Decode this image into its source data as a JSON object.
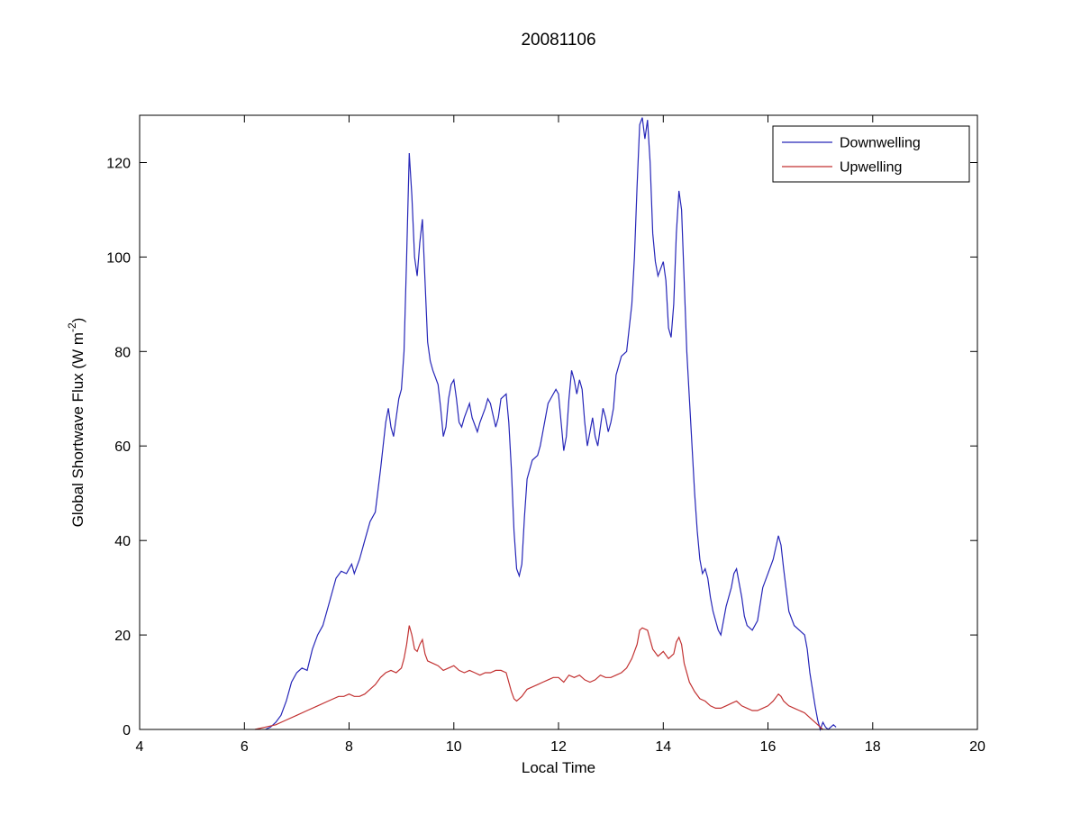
{
  "chart_data": {
    "type": "line",
    "title": "20081106",
    "xlabel": "Local Time",
    "ylabel": "Global Shortwave Flux (W m-2)",
    "ylabel_parts": {
      "main": "Global Shortwave Flux (W m",
      "sup": "-2",
      "end": ")"
    },
    "xlim": [
      4,
      20
    ],
    "ylim": [
      0,
      130
    ],
    "xticks": [
      4,
      6,
      8,
      10,
      12,
      14,
      16,
      18,
      20
    ],
    "yticks": [
      0,
      20,
      40,
      60,
      80,
      100,
      120
    ],
    "grid": false,
    "legend_position": "top-right",
    "series": [
      {
        "name": "Downwelling",
        "color": "#2626b8",
        "points": [
          [
            6.4,
            0
          ],
          [
            6.5,
            0.5
          ],
          [
            6.6,
            1.5
          ],
          [
            6.7,
            3
          ],
          [
            6.8,
            6
          ],
          [
            6.9,
            10
          ],
          [
            7.0,
            12
          ],
          [
            7.1,
            13
          ],
          [
            7.2,
            12.5
          ],
          [
            7.3,
            17
          ],
          [
            7.4,
            20
          ],
          [
            7.5,
            22
          ],
          [
            7.6,
            26
          ],
          [
            7.7,
            30
          ],
          [
            7.75,
            32
          ],
          [
            7.85,
            33.5
          ],
          [
            7.95,
            33
          ],
          [
            8.0,
            34
          ],
          [
            8.05,
            35
          ],
          [
            8.1,
            33
          ],
          [
            8.2,
            36
          ],
          [
            8.3,
            40
          ],
          [
            8.4,
            44
          ],
          [
            8.5,
            46
          ],
          [
            8.6,
            55
          ],
          [
            8.65,
            60
          ],
          [
            8.7,
            65
          ],
          [
            8.75,
            68
          ],
          [
            8.8,
            64
          ],
          [
            8.85,
            62
          ],
          [
            8.9,
            66
          ],
          [
            8.95,
            70
          ],
          [
            9.0,
            72
          ],
          [
            9.05,
            80
          ],
          [
            9.1,
            100
          ],
          [
            9.15,
            122
          ],
          [
            9.2,
            113
          ],
          [
            9.25,
            100
          ],
          [
            9.3,
            96
          ],
          [
            9.35,
            103
          ],
          [
            9.4,
            108
          ],
          [
            9.45,
            95
          ],
          [
            9.5,
            82
          ],
          [
            9.55,
            78
          ],
          [
            9.6,
            76
          ],
          [
            9.7,
            73
          ],
          [
            9.75,
            68
          ],
          [
            9.8,
            62
          ],
          [
            9.85,
            64
          ],
          [
            9.9,
            70
          ],
          [
            9.95,
            73
          ],
          [
            10.0,
            74
          ],
          [
            10.05,
            70
          ],
          [
            10.1,
            65
          ],
          [
            10.15,
            64
          ],
          [
            10.2,
            66
          ],
          [
            10.3,
            69
          ],
          [
            10.35,
            66
          ],
          [
            10.45,
            63
          ],
          [
            10.5,
            65
          ],
          [
            10.6,
            68
          ],
          [
            10.65,
            70
          ],
          [
            10.7,
            69
          ],
          [
            10.8,
            64
          ],
          [
            10.85,
            66
          ],
          [
            10.9,
            70
          ],
          [
            11.0,
            71
          ],
          [
            11.05,
            65
          ],
          [
            11.1,
            55
          ],
          [
            11.15,
            42
          ],
          [
            11.2,
            34
          ],
          [
            11.25,
            32.5
          ],
          [
            11.3,
            35
          ],
          [
            11.35,
            45
          ],
          [
            11.4,
            53
          ],
          [
            11.5,
            57
          ],
          [
            11.6,
            58
          ],
          [
            11.65,
            60
          ],
          [
            11.7,
            63
          ],
          [
            11.8,
            69
          ],
          [
            11.9,
            71
          ],
          [
            11.95,
            72
          ],
          [
            12.0,
            71
          ],
          [
            12.05,
            65
          ],
          [
            12.1,
            59
          ],
          [
            12.15,
            62
          ],
          [
            12.2,
            70
          ],
          [
            12.25,
            76
          ],
          [
            12.3,
            74
          ],
          [
            12.35,
            71
          ],
          [
            12.4,
            74
          ],
          [
            12.45,
            72
          ],
          [
            12.5,
            65
          ],
          [
            12.55,
            60
          ],
          [
            12.6,
            63
          ],
          [
            12.65,
            66
          ],
          [
            12.7,
            62
          ],
          [
            12.75,
            60
          ],
          [
            12.8,
            64
          ],
          [
            12.85,
            68
          ],
          [
            12.9,
            66
          ],
          [
            12.95,
            63
          ],
          [
            13.0,
            65
          ],
          [
            13.05,
            68
          ],
          [
            13.1,
            75
          ],
          [
            13.2,
            79
          ],
          [
            13.3,
            80
          ],
          [
            13.35,
            85
          ],
          [
            13.4,
            90
          ],
          [
            13.45,
            100
          ],
          [
            13.5,
            115
          ],
          [
            13.55,
            128
          ],
          [
            13.6,
            129.5
          ],
          [
            13.65,
            125
          ],
          [
            13.7,
            129
          ],
          [
            13.75,
            120
          ],
          [
            13.8,
            105
          ],
          [
            13.85,
            99
          ],
          [
            13.9,
            96
          ],
          [
            14.0,
            99
          ],
          [
            14.05,
            95
          ],
          [
            14.1,
            85
          ],
          [
            14.15,
            83
          ],
          [
            14.2,
            90
          ],
          [
            14.25,
            105
          ],
          [
            14.3,
            114
          ],
          [
            14.35,
            110
          ],
          [
            14.4,
            95
          ],
          [
            14.45,
            80
          ],
          [
            14.5,
            70
          ],
          [
            14.55,
            60
          ],
          [
            14.6,
            50
          ],
          [
            14.65,
            42
          ],
          [
            14.7,
            36
          ],
          [
            14.75,
            33
          ],
          [
            14.8,
            34
          ],
          [
            14.85,
            32
          ],
          [
            14.9,
            28
          ],
          [
            14.95,
            25
          ],
          [
            15.0,
            23
          ],
          [
            15.05,
            21
          ],
          [
            15.1,
            20
          ],
          [
            15.2,
            26
          ],
          [
            15.3,
            30
          ],
          [
            15.35,
            33
          ],
          [
            15.4,
            34
          ],
          [
            15.45,
            31
          ],
          [
            15.5,
            28
          ],
          [
            15.55,
            24
          ],
          [
            15.6,
            22
          ],
          [
            15.7,
            21
          ],
          [
            15.8,
            23
          ],
          [
            15.9,
            30
          ],
          [
            16.0,
            33
          ],
          [
            16.1,
            36
          ],
          [
            16.2,
            41
          ],
          [
            16.25,
            39
          ],
          [
            16.3,
            34
          ],
          [
            16.4,
            25
          ],
          [
            16.5,
            22
          ],
          [
            16.6,
            21
          ],
          [
            16.7,
            20
          ],
          [
            16.75,
            17
          ],
          [
            16.8,
            12
          ],
          [
            16.9,
            5
          ],
          [
            16.95,
            2
          ],
          [
            17.0,
            0
          ],
          [
            17.05,
            1.5
          ],
          [
            17.1,
            0.5
          ],
          [
            17.15,
            0
          ],
          [
            17.25,
            1
          ],
          [
            17.3,
            0.5
          ]
        ]
      },
      {
        "name": "Upwelling",
        "color": "#c23232",
        "points": [
          [
            6.2,
            0
          ],
          [
            6.4,
            0.5
          ],
          [
            6.6,
            1
          ],
          [
            6.8,
            2
          ],
          [
            7.0,
            3
          ],
          [
            7.2,
            4
          ],
          [
            7.4,
            5
          ],
          [
            7.6,
            6
          ],
          [
            7.8,
            7
          ],
          [
            7.9,
            7
          ],
          [
            8.0,
            7.5
          ],
          [
            8.1,
            7
          ],
          [
            8.2,
            7
          ],
          [
            8.3,
            7.5
          ],
          [
            8.4,
            8.5
          ],
          [
            8.5,
            9.5
          ],
          [
            8.6,
            11
          ],
          [
            8.7,
            12
          ],
          [
            8.8,
            12.5
          ],
          [
            8.9,
            12
          ],
          [
            9.0,
            13
          ],
          [
            9.05,
            15
          ],
          [
            9.1,
            18
          ],
          [
            9.15,
            22
          ],
          [
            9.2,
            20
          ],
          [
            9.25,
            17
          ],
          [
            9.3,
            16.5
          ],
          [
            9.35,
            18
          ],
          [
            9.4,
            19
          ],
          [
            9.45,
            16
          ],
          [
            9.5,
            14.5
          ],
          [
            9.6,
            14
          ],
          [
            9.7,
            13.5
          ],
          [
            9.8,
            12.5
          ],
          [
            9.9,
            13
          ],
          [
            10.0,
            13.5
          ],
          [
            10.1,
            12.5
          ],
          [
            10.2,
            12
          ],
          [
            10.3,
            12.5
          ],
          [
            10.4,
            12
          ],
          [
            10.5,
            11.5
          ],
          [
            10.6,
            12
          ],
          [
            10.7,
            12
          ],
          [
            10.8,
            12.5
          ],
          [
            10.9,
            12.5
          ],
          [
            11.0,
            12
          ],
          [
            11.05,
            10
          ],
          [
            11.1,
            8
          ],
          [
            11.15,
            6.5
          ],
          [
            11.2,
            6
          ],
          [
            11.3,
            7
          ],
          [
            11.4,
            8.5
          ],
          [
            11.5,
            9
          ],
          [
            11.6,
            9.5
          ],
          [
            11.7,
            10
          ],
          [
            11.8,
            10.5
          ],
          [
            11.9,
            11
          ],
          [
            12.0,
            11
          ],
          [
            12.1,
            10
          ],
          [
            12.2,
            11.5
          ],
          [
            12.3,
            11
          ],
          [
            12.4,
            11.5
          ],
          [
            12.5,
            10.5
          ],
          [
            12.6,
            10
          ],
          [
            12.7,
            10.5
          ],
          [
            12.8,
            11.5
          ],
          [
            12.9,
            11
          ],
          [
            13.0,
            11
          ],
          [
            13.1,
            11.5
          ],
          [
            13.2,
            12
          ],
          [
            13.3,
            13
          ],
          [
            13.4,
            15
          ],
          [
            13.5,
            18
          ],
          [
            13.55,
            21
          ],
          [
            13.6,
            21.5
          ],
          [
            13.7,
            21
          ],
          [
            13.75,
            19
          ],
          [
            13.8,
            17
          ],
          [
            13.9,
            15.5
          ],
          [
            14.0,
            16.5
          ],
          [
            14.1,
            15
          ],
          [
            14.2,
            16
          ],
          [
            14.25,
            18.5
          ],
          [
            14.3,
            19.5
          ],
          [
            14.35,
            18
          ],
          [
            14.4,
            14
          ],
          [
            14.5,
            10
          ],
          [
            14.6,
            8
          ],
          [
            14.7,
            6.5
          ],
          [
            14.8,
            6
          ],
          [
            14.9,
            5
          ],
          [
            15.0,
            4.5
          ],
          [
            15.1,
            4.5
          ],
          [
            15.2,
            5
          ],
          [
            15.3,
            5.5
          ],
          [
            15.4,
            6
          ],
          [
            15.5,
            5
          ],
          [
            15.6,
            4.5
          ],
          [
            15.7,
            4
          ],
          [
            15.8,
            4
          ],
          [
            15.9,
            4.5
          ],
          [
            16.0,
            5
          ],
          [
            16.1,
            6
          ],
          [
            16.2,
            7.5
          ],
          [
            16.25,
            7
          ],
          [
            16.3,
            6
          ],
          [
            16.4,
            5
          ],
          [
            16.5,
            4.5
          ],
          [
            16.6,
            4
          ],
          [
            16.7,
            3.5
          ],
          [
            16.8,
            2.5
          ],
          [
            16.9,
            1.5
          ],
          [
            17.0,
            0.5
          ],
          [
            17.05,
            0
          ]
        ]
      }
    ]
  }
}
